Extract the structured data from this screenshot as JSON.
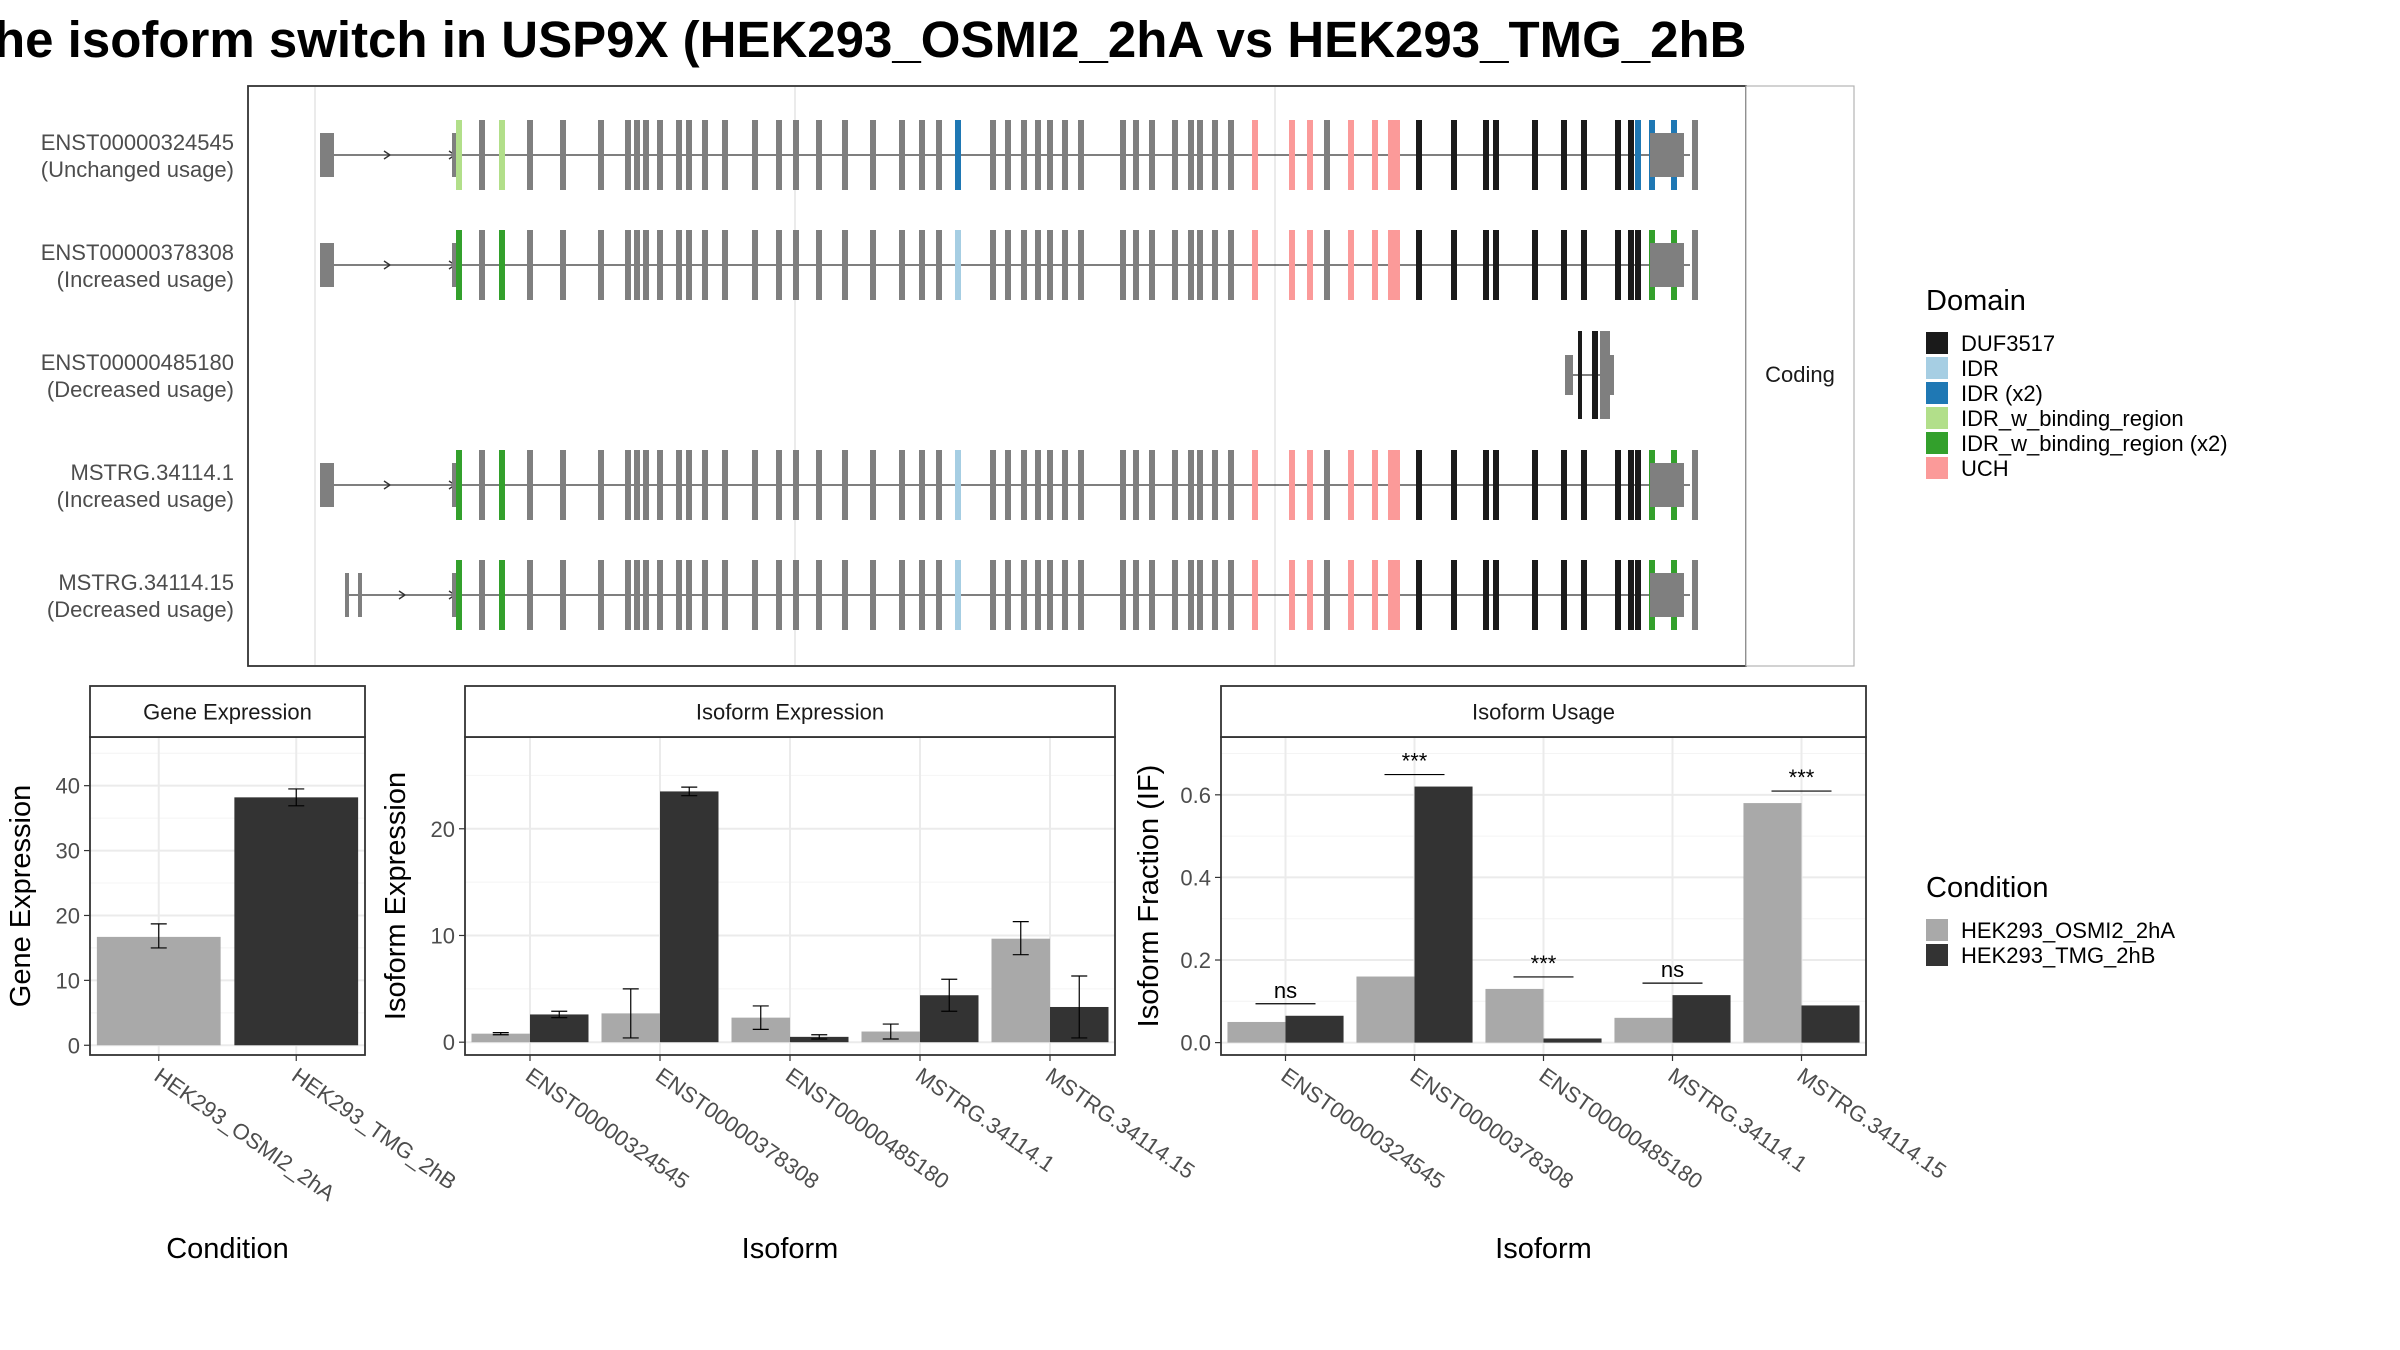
{
  "title": "he isoform switch in USP9X (HEK293_OSMI2_2hA vs HEK293_TMG_2hB",
  "structure": {
    "facet_label": "Coding",
    "transcripts": [
      {
        "id": "ENST00000324545",
        "note": "(Unchanged usage)"
      },
      {
        "id": "ENST00000378308",
        "note": "(Increased usage)"
      },
      {
        "id": "ENST00000485180",
        "note": "(Decreased usage)"
      },
      {
        "id": "MSTRG.34114.1",
        "note": "(Increased usage)"
      },
      {
        "id": "MSTRG.34114.15",
        "note": "(Decreased usage)"
      }
    ]
  },
  "domain_legend": {
    "title": "Domain",
    "items": [
      {
        "label": "DUF3517",
        "color": "#1a1a1a"
      },
      {
        "label": "IDR",
        "color": "#a6cee3"
      },
      {
        "label": "IDR (x2)",
        "color": "#1f78b4"
      },
      {
        "label": "IDR_w_binding_region",
        "color": "#b2df8a"
      },
      {
        "label": "IDR_w_binding_region (x2)",
        "color": "#33a02c"
      },
      {
        "label": "UCH",
        "color": "#fb9a99"
      }
    ]
  },
  "condition_legend": {
    "title": "Condition",
    "items": [
      {
        "label": "HEK293_OSMI2_2hA",
        "color": "#a9a9a9"
      },
      {
        "label": "HEK293_TMG_2hB",
        "color": "#333333"
      }
    ]
  },
  "chart_data": [
    {
      "type": "bar",
      "title": "Gene Expression",
      "xlabel": "Condition",
      "ylabel": "Gene Expression",
      "categories": [
        "HEK293_OSMI2_2hA",
        "HEK293_TMG_2hB"
      ],
      "values": [
        16.7,
        38.2
      ],
      "errors": [
        [
          15.0,
          18.7
        ],
        [
          36.9,
          39.5
        ]
      ],
      "ylim": [
        -1.5,
        47.5
      ],
      "yticks": [
        0,
        10,
        20,
        30,
        40
      ]
    },
    {
      "type": "bar",
      "title": "Isoform Expression",
      "xlabel": "Isoform",
      "ylabel": "Isoform Expression",
      "categories": [
        "ENST00000324545",
        "ENST00000378308",
        "ENST00000485180",
        "MSTRG.34114.1",
        "MSTRG.34114.15"
      ],
      "series": [
        {
          "name": "HEK293_OSMI2_2hA",
          "values": [
            0.8,
            2.7,
            2.3,
            1.0,
            9.7
          ],
          "errors": [
            [
              0.7,
              0.9
            ],
            [
              0.4,
              5.0
            ],
            [
              1.2,
              3.4
            ],
            [
              0.3,
              1.7
            ],
            [
              8.2,
              11.3
            ]
          ]
        },
        {
          "name": "HEK293_TMG_2hB",
          "values": [
            2.6,
            23.5,
            0.5,
            4.4,
            3.3
          ],
          "errors": [
            [
              2.3,
              2.9
            ],
            [
              23.1,
              23.9
            ],
            [
              0.3,
              0.7
            ],
            [
              2.9,
              5.9
            ],
            [
              0.4,
              6.2
            ]
          ]
        }
      ],
      "ylim": [
        -1.2,
        28.6
      ],
      "yticks": [
        0,
        10,
        20
      ]
    },
    {
      "type": "bar",
      "title": "Isoform Usage",
      "xlabel": "Isoform",
      "ylabel": "Isoform Fraction (IF)",
      "categories": [
        "ENST00000324545",
        "ENST00000378308",
        "ENST00000485180",
        "MSTRG.34114.1",
        "MSTRG.34114.15"
      ],
      "series": [
        {
          "name": "HEK293_OSMI2_2hA",
          "values": [
            0.05,
            0.16,
            0.13,
            0.06,
            0.58
          ]
        },
        {
          "name": "HEK293_TMG_2hB",
          "values": [
            0.065,
            0.62,
            0.01,
            0.115,
            0.09
          ]
        }
      ],
      "significance": [
        "ns",
        "***",
        "***",
        "ns",
        "***"
      ],
      "ylim": [
        -0.03,
        0.74
      ],
      "yticks": [
        0.0,
        0.2,
        0.4,
        0.6
      ],
      "yticklabels": [
        "0.0",
        "0.2",
        "0.4",
        "0.6"
      ]
    }
  ]
}
